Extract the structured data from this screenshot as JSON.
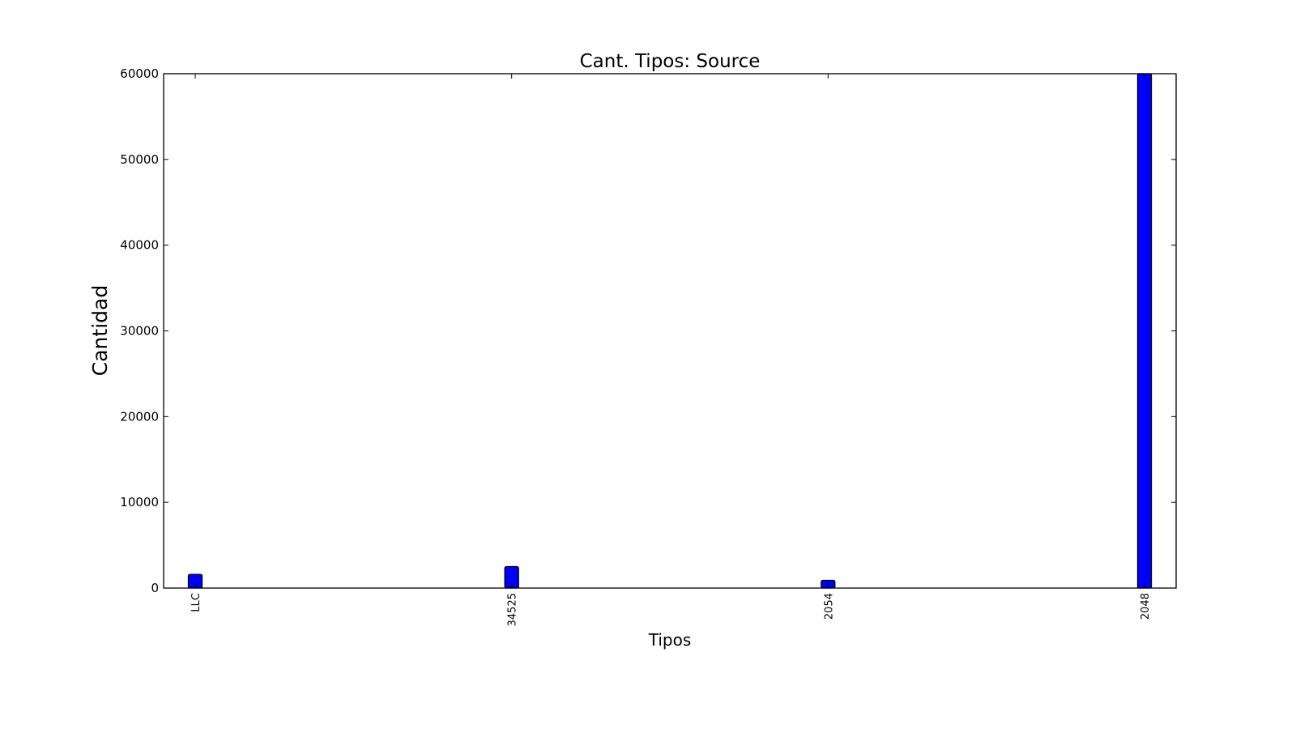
{
  "chart_data": {
    "type": "bar",
    "title": "Cant. Tipos: Source",
    "xlabel": "Tipos",
    "ylabel": "Cantidad",
    "categories": [
      "LLC",
      "34525",
      "2054",
      "2048"
    ],
    "values": [
      1600,
      2500,
      900,
      60000
    ],
    "ylim": [
      0,
      60000
    ],
    "yticks": [
      0,
      10000,
      20000,
      30000,
      40000,
      50000,
      60000
    ],
    "ytick_labels": [
      "0",
      "10000",
      "20000",
      "30000",
      "40000",
      "50000",
      "60000"
    ],
    "bar_color": "#0000ff",
    "edge_color": "#000000",
    "grid": false,
    "legend": "none"
  }
}
